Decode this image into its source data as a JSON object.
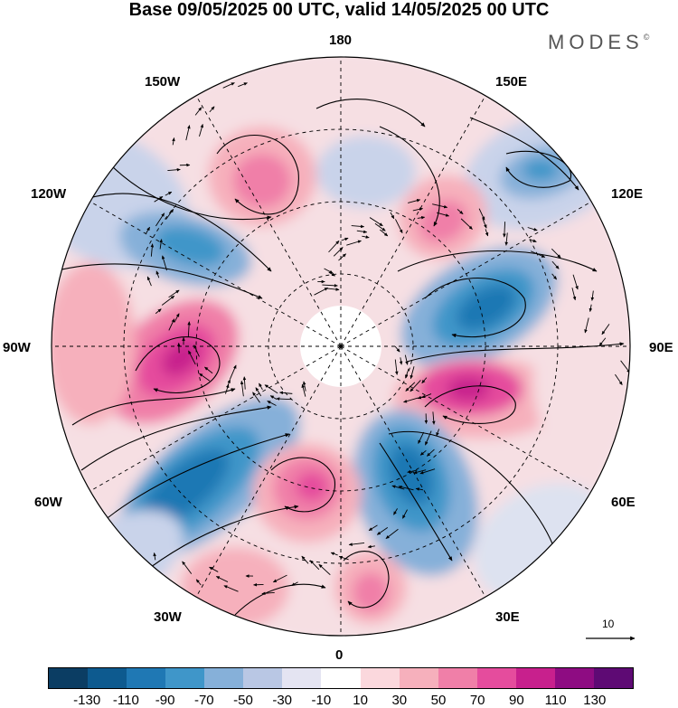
{
  "title": "Base 09/05/2025 00 UTC, valid 14/05/2025 00 UTC",
  "brand": "MODES",
  "brand_mark": "©",
  "lon_labels": {
    "n180": "180",
    "e150": "150E",
    "e120": "120E",
    "e90": "90E",
    "e60": "60E",
    "e30": "30E",
    "s0": "0",
    "w30": "30W",
    "w60": "60W",
    "w90": "90W",
    "w120": "120W",
    "w150": "150W"
  },
  "vector_ref": "10",
  "colorbar": {
    "colors": [
      "#0b3d63",
      "#0d5a8f",
      "#1f78b4",
      "#3f96c9",
      "#86b0d9",
      "#b9c7e4",
      "#e4e4f2",
      "#ffffff",
      "#fbd8dd",
      "#f6b0bc",
      "#f07fa8",
      "#e54c9d",
      "#c8208d",
      "#8e0c82",
      "#5e0a74"
    ],
    "ticks": [
      "-130",
      "-110",
      "-90",
      "-70",
      "-50",
      "-30",
      "-10",
      "10",
      "30",
      "50",
      "70",
      "90",
      "110",
      "130"
    ]
  }
}
